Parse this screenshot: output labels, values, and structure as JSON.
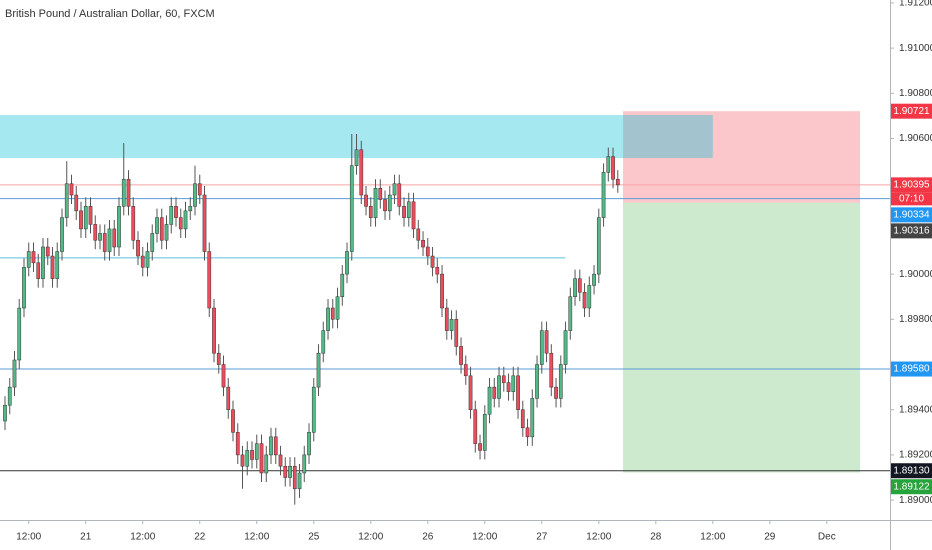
{
  "chart_data": {
    "type": "candlestick",
    "title": "British Pound / Australian Dollar, 60, FXCM",
    "open": [
      1.8935,
      1.8942,
      1.895,
      1.8962,
      1.8985,
      1.9003,
      1.901,
      1.9005,
      1.8998,
      1.9012,
      1.9008,
      1.8998,
      1.901,
      1.9025,
      1.904,
      1.9035,
      1.9028,
      1.902,
      1.903,
      1.9022,
      1.9015,
      1.9018,
      1.901,
      1.902,
      1.9012,
      1.903,
      1.9042,
      1.903,
      1.9015,
      1.9008,
      1.9003,
      1.901,
      1.9018,
      1.9025,
      1.9015,
      1.9022,
      1.903,
      1.9025,
      1.902,
      1.9028,
      1.903,
      1.904,
      1.9035,
      1.901,
      1.8985,
      1.8965,
      1.896,
      1.895,
      1.894,
      1.893,
      1.892,
      1.8915,
      1.8922,
      1.8918,
      1.8925,
      1.8912,
      1.892,
      1.8928,
      1.892,
      1.8915,
      1.891,
      1.8915,
      1.8905,
      1.8912,
      1.892,
      1.893,
      1.895,
      1.8965,
      1.8975,
      1.8985,
      1.898,
      1.899,
      1.9,
      1.901,
      1.9048,
      1.9055,
      1.9035,
      1.903,
      1.9025,
      1.9038,
      1.9033,
      1.9028,
      1.9035,
      1.904,
      1.903,
      1.9025,
      1.9032,
      1.902,
      1.9015,
      1.9012,
      1.9008,
      1.9003,
      1.9,
      1.8985,
      1.8975,
      1.898,
      1.8968,
      1.896,
      1.8955,
      1.894,
      1.8925,
      1.8922,
      1.8938,
      1.895,
      1.8945,
      1.8955,
      1.8952,
      1.8948,
      1.8955,
      1.894,
      1.8932,
      1.8928,
      1.8945,
      1.896,
      1.8975,
      1.8965,
      1.895,
      1.8945,
      1.896,
      1.8975,
      1.899,
      1.8998,
      1.8992,
      1.8985,
      1.8995,
      1.9,
      1.9025,
      1.9045,
      1.9052,
      1.9042
    ],
    "high": [
      1.8946,
      1.8954,
      1.8966,
      1.8989,
      1.9007,
      1.9014,
      1.9014,
      1.9009,
      1.9016,
      1.9016,
      1.9012,
      1.9014,
      1.9029,
      1.905,
      1.9044,
      1.9039,
      1.9032,
      1.9034,
      1.9034,
      1.9026,
      1.9022,
      1.9022,
      1.9024,
      1.9024,
      1.9034,
      1.9058,
      1.9046,
      1.9034,
      1.9019,
      1.9012,
      1.9014,
      1.9022,
      1.9029,
      1.9029,
      1.9026,
      1.9034,
      1.9034,
      1.9029,
      1.9032,
      1.9034,
      1.9048,
      1.9044,
      1.9039,
      1.9014,
      1.8989,
      1.8969,
      1.8964,
      1.8954,
      1.8944,
      1.8934,
      1.8924,
      1.8926,
      1.8926,
      1.8929,
      1.8929,
      1.8924,
      1.8932,
      1.8932,
      1.8924,
      1.8919,
      1.8919,
      1.8919,
      1.8916,
      1.8924,
      1.8934,
      1.8954,
      1.8969,
      1.8979,
      1.8989,
      1.8989,
      1.8994,
      1.9004,
      1.9014,
      1.9062,
      1.9062,
      1.9059,
      1.9039,
      1.9034,
      1.9042,
      1.9042,
      1.9037,
      1.9039,
      1.9044,
      1.9044,
      1.9034,
      1.9036,
      1.9036,
      1.9024,
      1.9019,
      1.9016,
      1.9012,
      1.9007,
      1.9004,
      1.8989,
      1.8984,
      1.8984,
      1.8972,
      1.8964,
      1.8959,
      1.8944,
      1.8929,
      1.8942,
      1.8954,
      1.8954,
      1.8959,
      1.8959,
      1.8956,
      1.8959,
      1.8959,
      1.8944,
      1.8936,
      1.8949,
      1.8964,
      1.8979,
      1.8979,
      1.8969,
      1.8954,
      1.8964,
      1.8979,
      1.8994,
      1.9002,
      1.9002,
      1.8996,
      1.8999,
      1.9004,
      1.9029,
      1.9049,
      1.9056,
      1.9056,
      1.9046
    ],
    "low": [
      1.8931,
      1.8938,
      1.8946,
      1.8958,
      1.8981,
      1.8999,
      1.9001,
      1.8994,
      1.8994,
      1.9004,
      1.8994,
      1.8994,
      1.9006,
      1.9021,
      1.9031,
      1.9024,
      1.9016,
      1.9016,
      1.9018,
      1.9011,
      1.9011,
      1.9006,
      1.9006,
      1.9008,
      1.9008,
      1.9026,
      1.9026,
      1.9011,
      1.9004,
      1.8999,
      1.8999,
      1.9006,
      1.9014,
      1.9011,
      1.9011,
      1.9018,
      1.9021,
      1.9016,
      1.9016,
      1.9024,
      1.9026,
      1.9031,
      1.9006,
      1.8981,
      1.8961,
      1.8956,
      1.8946,
      1.8936,
      1.8926,
      1.8916,
      1.8905,
      1.8911,
      1.8914,
      1.8914,
      1.8908,
      1.8908,
      1.8916,
      1.8916,
      1.8911,
      1.8906,
      1.8906,
      1.8898,
      1.8901,
      1.8908,
      1.8916,
      1.8926,
      1.8946,
      1.8961,
      1.8971,
      1.8976,
      1.8976,
      1.8986,
      1.8996,
      1.9006,
      1.9044,
      1.9031,
      1.9026,
      1.9021,
      1.9021,
      1.9029,
      1.9024,
      1.9024,
      1.9031,
      1.9026,
      1.9021,
      1.9021,
      1.9016,
      1.9011,
      1.9008,
      1.9004,
      1.8999,
      1.8996,
      1.8981,
      1.8971,
      1.8971,
      1.8964,
      1.8956,
      1.8951,
      1.8936,
      1.8921,
      1.8918,
      1.8918,
      1.8934,
      1.8941,
      1.8941,
      1.8948,
      1.8944,
      1.8944,
      1.8936,
      1.8928,
      1.8924,
      1.8924,
      1.8941,
      1.8956,
      1.8961,
      1.8946,
      1.8941,
      1.8941,
      1.8956,
      1.8971,
      1.8986,
      1.8988,
      1.8981,
      1.8981,
      1.8991,
      1.8996,
      1.9021,
      1.9041,
      1.9038,
      1.9036
    ],
    "close": [
      1.8942,
      1.895,
      1.8962,
      1.8985,
      1.9003,
      1.901,
      1.9005,
      1.8998,
      1.9012,
      1.9008,
      1.8998,
      1.901,
      1.9025,
      1.904,
      1.9035,
      1.9028,
      1.902,
      1.903,
      1.9022,
      1.9015,
      1.9018,
      1.901,
      1.902,
      1.9012,
      1.903,
      1.9042,
      1.903,
      1.9015,
      1.9008,
      1.9003,
      1.901,
      1.9018,
      1.9025,
      1.9015,
      1.9022,
      1.903,
      1.9025,
      1.902,
      1.9028,
      1.903,
      1.904,
      1.9035,
      1.901,
      1.8985,
      1.8965,
      1.896,
      1.895,
      1.894,
      1.893,
      1.892,
      1.8915,
      1.8922,
      1.8918,
      1.8925,
      1.8912,
      1.892,
      1.8928,
      1.892,
      1.8915,
      1.891,
      1.8915,
      1.8905,
      1.8912,
      1.892,
      1.893,
      1.895,
      1.8965,
      1.8975,
      1.8985,
      1.898,
      1.899,
      1.9,
      1.901,
      1.9048,
      1.9055,
      1.9035,
      1.903,
      1.9025,
      1.9038,
      1.9033,
      1.9028,
      1.9035,
      1.904,
      1.903,
      1.9025,
      1.9032,
      1.902,
      1.9015,
      1.9012,
      1.9008,
      1.9003,
      1.9,
      1.8985,
      1.8975,
      1.898,
      1.8968,
      1.896,
      1.8955,
      1.894,
      1.8925,
      1.8922,
      1.8938,
      1.895,
      1.8945,
      1.8955,
      1.8952,
      1.8948,
      1.8955,
      1.894,
      1.8932,
      1.8928,
      1.8945,
      1.896,
      1.8975,
      1.8965,
      1.895,
      1.8945,
      1.896,
      1.8975,
      1.899,
      1.8998,
      1.8992,
      1.8985,
      1.8995,
      1.9,
      1.9025,
      1.9045,
      1.9052,
      1.9042,
      1.90395
    ],
    "up_color": "#53b987",
    "down_color": "#eb4d5c",
    "xlim": [
      -1.05,
      186.3
    ],
    "ylim": [
      1.88912,
      1.91213
    ],
    "xticks": [
      {
        "value": 5,
        "label": "12:00"
      },
      {
        "value": 17,
        "label": "21"
      },
      {
        "value": 29,
        "label": "12:00"
      },
      {
        "value": 41,
        "label": "22"
      },
      {
        "value": 53,
        "label": "12:00"
      },
      {
        "value": 65,
        "label": "25"
      },
      {
        "value": 77,
        "label": "12:00"
      },
      {
        "value": 89,
        "label": "26"
      },
      {
        "value": 101,
        "label": "12:00"
      },
      {
        "value": 113,
        "label": "27"
      },
      {
        "value": 125,
        "label": "12:00"
      },
      {
        "value": 137,
        "label": "28"
      },
      {
        "value": 149,
        "label": "12:00"
      },
      {
        "value": 161,
        "label": "29"
      },
      {
        "value": 173,
        "label": "Dec"
      }
    ],
    "yticks": [
      {
        "value": 1.912,
        "label": "1.91200"
      },
      {
        "value": 1.91,
        "label": "1.91000"
      },
      {
        "value": 1.908,
        "label": "1.90800"
      },
      {
        "value": 1.906,
        "label": "1.90600"
      },
      {
        "value": 1.9,
        "label": "1.90000"
      },
      {
        "value": 1.898,
        "label": "1.89800"
      },
      {
        "value": 1.894,
        "label": "1.89400"
      },
      {
        "value": 1.892,
        "label": "1.89200"
      },
      {
        "value": 1.89,
        "label": "1.89000"
      }
    ],
    "grid": false,
    "zones": [
      {
        "color": "#f23645",
        "opacity": 0.28,
        "start": 130.1,
        "end": 180,
        "top": 1.90721,
        "bottom": 1.90316
      },
      {
        "color": "#4caf50",
        "opacity": 0.28,
        "start": 130.1,
        "end": 180,
        "top": 1.90316,
        "bottom": 1.89122
      },
      {
        "color": "#00bcd4",
        "opacity": 0.35,
        "start": -1.05,
        "end": 149,
        "top": 1.90704,
        "bottom": 1.90514
      }
    ],
    "lines": [
      {
        "value": 1.90395,
        "color": "#f7a5a5"
      },
      {
        "value": 1.90334,
        "color": "#5b9bd5"
      },
      {
        "value": 1.90072,
        "color": "#5bc0de",
        "end": 118
      },
      {
        "value": 1.8958,
        "color": "#5b9bd5"
      },
      {
        "value": 1.8913,
        "color": "#333333"
      }
    ],
    "price_labels": [
      {
        "value": 1.90721,
        "label": "1.90721",
        "color": "#f23645"
      },
      {
        "value": 1.90395,
        "label": "1.90395",
        "color": "#f23645",
        "countdown": "07:10"
      },
      {
        "value": 1.90334,
        "label": "1.90334",
        "color": "#2196f3"
      },
      {
        "value": 1.90316,
        "label": "1.90316",
        "color": "#444444"
      },
      {
        "value": 1.8958,
        "label": "1.89580",
        "color": "#2196f3"
      },
      {
        "value": 1.8913,
        "label": "1.89130",
        "color": "#131722"
      },
      {
        "value": 1.89122,
        "label": "1.89122",
        "color": "#26a33a"
      }
    ]
  }
}
